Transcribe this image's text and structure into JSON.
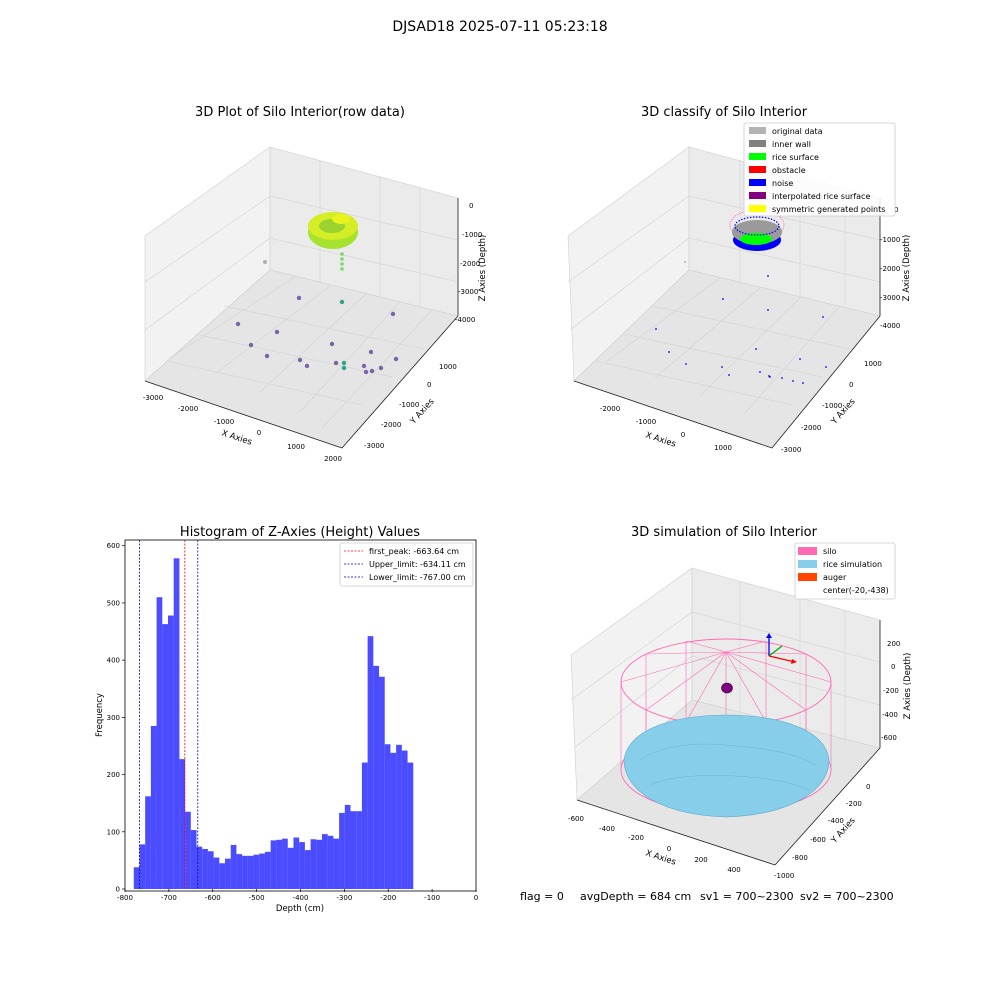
{
  "figure": {
    "suptitle": "DJSAD18 2025-07-11 05:23:18",
    "footer": {
      "flag": "flag = 0",
      "avg_depth": "avgDepth = 684 cm",
      "sv1": "sv1 = 700~2300",
      "sv2": "sv2 = 700~2300"
    }
  },
  "panels": {
    "raw": {
      "title": "3D Plot of Silo Interior(row data)",
      "xlabel": "X Axies",
      "ylabel": "Y Axies",
      "zlabel": "Z Axies (Depth)",
      "x_ticks": [
        "-3000",
        "-2000",
        "-1000",
        "0",
        "1000",
        "2000"
      ],
      "y_ticks": [
        "-3000",
        "-2000",
        "-1000",
        "0",
        "1000"
      ],
      "z_ticks": [
        "-4000",
        "-3000",
        "-2000",
        "-1000",
        "0"
      ]
    },
    "classify": {
      "title": "3D classify of Silo Interior",
      "xlabel": "X Axies",
      "ylabel": "Y Axies",
      "zlabel": "Z Axies (Depth)",
      "x_ticks": [
        "-2000",
        "-1000",
        "0",
        "1000"
      ],
      "y_ticks": [
        "-3000",
        "-2000",
        "-1000",
        "0",
        "1000"
      ],
      "z_ticks": [
        "-4000",
        "-3000",
        "-2000",
        "-1000",
        "0"
      ],
      "legend": [
        {
          "label": "original data",
          "color": "#b3b3b3"
        },
        {
          "label": "inner wall",
          "color": "#808080"
        },
        {
          "label": "rice surface",
          "color": "#00ff00"
        },
        {
          "label": "obstacle",
          "color": "#ff0000"
        },
        {
          "label": "noise",
          "color": "#0000ff"
        },
        {
          "label": "interpolated rice surface",
          "color": "#800080"
        },
        {
          "label": "symmetric generated points",
          "color": "#ffff00"
        }
      ]
    },
    "simulation": {
      "title": "3D simulation of Silo Interior",
      "xlabel": "X Axies",
      "ylabel": "Y Axies",
      "zlabel": "Z Axies (Depth)",
      "x_ticks": [
        "-600",
        "-400",
        "-200",
        "0",
        "200",
        "400"
      ],
      "y_ticks": [
        "-1000",
        "-800",
        "-600",
        "-400",
        "-200",
        "0"
      ],
      "z_ticks": [
        "-600",
        "-400",
        "-200",
        "0",
        "200"
      ],
      "legend": [
        {
          "label": "silo",
          "color": "#ff69b4"
        },
        {
          "label": "rice simulation",
          "color": "#87ceeb"
        },
        {
          "label": "auger",
          "color": "#ff4500"
        },
        {
          "label": "center(-20,-438)",
          "color": ""
        }
      ]
    }
  },
  "chart_data": [
    {
      "type": "bar",
      "title": "Histogram of Z-Axies (Height) Values",
      "xlabel": "Depth (cm)",
      "ylabel": "Frequency",
      "xlim": [
        -800,
        0
      ],
      "ylim": [
        0,
        600
      ],
      "x_ticks": [
        "-800",
        "-700",
        "-600",
        "-500",
        "-400",
        "-300",
        "-200",
        "-100",
        "0"
      ],
      "y_ticks": [
        "0",
        "100",
        "200",
        "300",
        "400",
        "500",
        "600"
      ],
      "bar_color": "#0000ff",
      "bin_start": -780,
      "bin_width": 13,
      "values": [
        38,
        78,
        162,
        285,
        510,
        463,
        478,
        578,
        227,
        135,
        103,
        74,
        70,
        66,
        55,
        45,
        53,
        77,
        61,
        58,
        58,
        60,
        62,
        65,
        85,
        86,
        88,
        72,
        90,
        82,
        68,
        87,
        86,
        96,
        93,
        88,
        133,
        147,
        136,
        136,
        221,
        442,
        390,
        371,
        253,
        238,
        252,
        242,
        221
      ],
      "lines": [
        {
          "label": "first_peak: -663.64 cm",
          "x": -663.64,
          "color": "#ff0000"
        },
        {
          "label": "Upper_limit: -634.11 cm",
          "x": -634.11,
          "color": "#0000bb"
        },
        {
          "label": "Lower_limit: -767.00 cm",
          "x": -767.0,
          "color": "#0000bb"
        }
      ],
      "legend_position": "top-right",
      "grid": false
    }
  ]
}
